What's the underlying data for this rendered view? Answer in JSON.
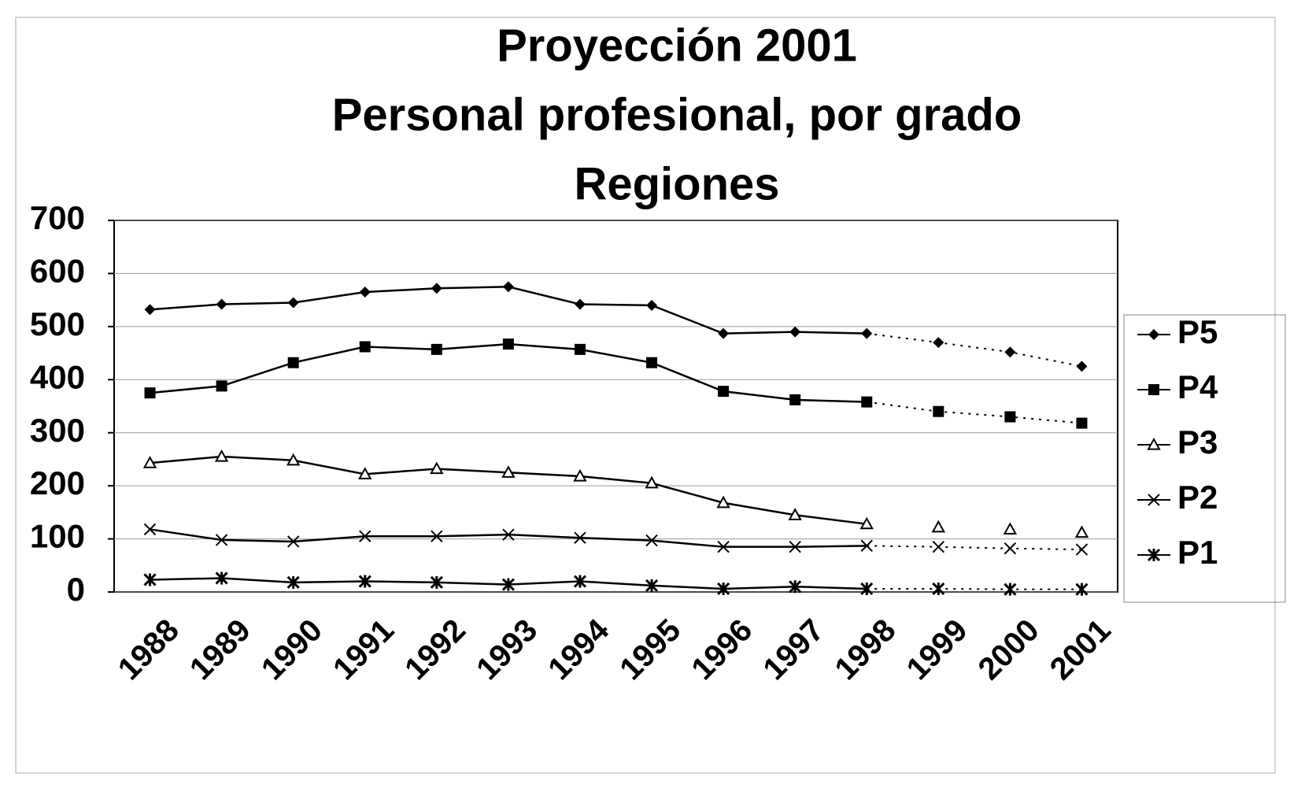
{
  "chart_data": {
    "type": "line",
    "title": [
      "Proyección 2001",
      "Personal profesional, por grado",
      "Regiones"
    ],
    "categories": [
      "1988",
      "1989",
      "1990",
      "1991",
      "1992",
      "1993",
      "1994",
      "1995",
      "1996",
      "1997",
      "1998",
      "1999",
      "2000",
      "2001"
    ],
    "projection_from": "1998",
    "series": [
      {
        "name": "P5",
        "color": "#000000",
        "marker": "diamond",
        "projection_line": true,
        "values": [
          532,
          542,
          545,
          565,
          572,
          575,
          542,
          540,
          487,
          490,
          487,
          470,
          452,
          425
        ]
      },
      {
        "name": "P4",
        "color": "#000000",
        "marker": "square",
        "projection_line": true,
        "values": [
          375,
          388,
          432,
          462,
          457,
          467,
          457,
          432,
          378,
          362,
          358,
          340,
          330,
          318
        ]
      },
      {
        "name": "P3",
        "color": "#000000",
        "marker": "triangle",
        "projection_line": false,
        "values": [
          243,
          255,
          248,
          222,
          232,
          225,
          218,
          205,
          168,
          145,
          128,
          122,
          118,
          112
        ]
      },
      {
        "name": "P2",
        "color": "#000000",
        "marker": "x",
        "projection_line": true,
        "values": [
          118,
          98,
          95,
          105,
          105,
          108,
          102,
          97,
          85,
          85,
          87,
          85,
          82,
          80
        ]
      },
      {
        "name": "P1",
        "color": "#000000",
        "marker": "asterisk",
        "projection_line": true,
        "values": [
          23,
          26,
          18,
          20,
          18,
          14,
          20,
          12,
          6,
          10,
          6,
          6,
          5,
          5
        ]
      }
    ],
    "ylim": [
      0,
      700
    ],
    "yticks": [
      0,
      100,
      200,
      300,
      400,
      500,
      600,
      700
    ],
    "grid": true,
    "legend": "right"
  }
}
